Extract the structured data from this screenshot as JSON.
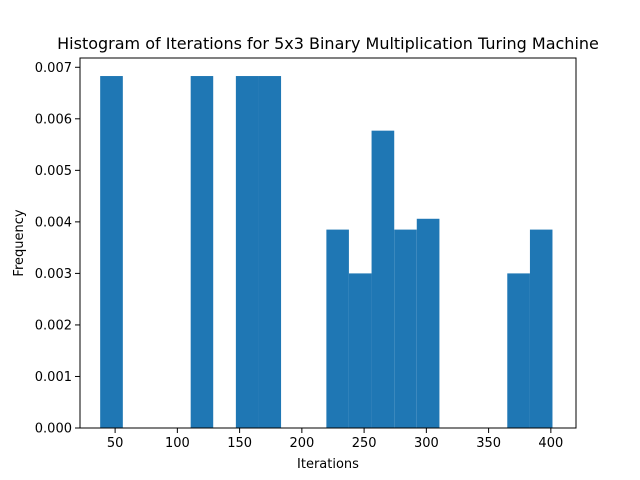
{
  "chart_data": {
    "type": "bar",
    "title": "Histogram of Iterations for 5x3 Binary Multiplication Turing Machine",
    "xlabel": "Iterations",
    "ylabel": "Frequency",
    "xlim": [
      21.8,
      420.2
    ],
    "ylim": [
      0,
      0.00718
    ],
    "xticks": [
      50,
      100,
      150,
      200,
      250,
      300,
      350,
      400
    ],
    "xtick_labels": [
      "50",
      "100",
      "150",
      "200",
      "250",
      "300",
      "350",
      "400"
    ],
    "yticks": [
      0.0,
      0.001,
      0.002,
      0.003,
      0.004,
      0.005,
      0.006,
      0.007
    ],
    "ytick_labels": [
      "0.000",
      "0.001",
      "0.002",
      "0.003",
      "0.004",
      "0.005",
      "0.006",
      "0.007"
    ],
    "bar_color": "#1f77b4",
    "bins": [
      {
        "x0": 38.0,
        "x1": 56.2,
        "value": 0.00683
      },
      {
        "x0": 110.7,
        "x1": 128.8,
        "value": 0.00683
      },
      {
        "x0": 147.0,
        "x1": 165.2,
        "value": 0.00683
      },
      {
        "x0": 165.2,
        "x1": 183.3,
        "value": 0.00683
      },
      {
        "x0": 219.7,
        "x1": 237.8,
        "value": 0.00385
      },
      {
        "x0": 237.8,
        "x1": 256.0,
        "value": 0.003
      },
      {
        "x0": 256.0,
        "x1": 274.2,
        "value": 0.00577
      },
      {
        "x0": 274.2,
        "x1": 292.3,
        "value": 0.00385
      },
      {
        "x0": 292.3,
        "x1": 310.5,
        "value": 0.00406
      },
      {
        "x0": 365.0,
        "x1": 383.2,
        "value": 0.003
      },
      {
        "x0": 383.2,
        "x1": 401.3,
        "value": 0.00385
      }
    ]
  }
}
